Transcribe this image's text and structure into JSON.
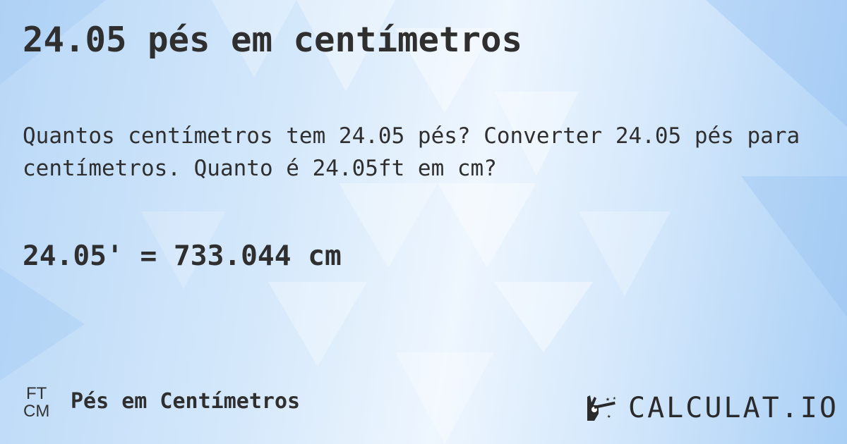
{
  "title": "24.05 pés em centímetros",
  "question": "Quantos centímetros tem 24.05 pés? Converter 24.05 pés para centímetros. Quanto é 24.05ft em cm?",
  "result": "24.05' = 733.044 cm",
  "footer": {
    "unit_icon": {
      "top": "FT",
      "bottom": "CM"
    },
    "category": "Pés em Centímetros",
    "logo_text": "CALCULAT.IO",
    "logo_icon": "hand-magic-wand-icon"
  },
  "colors": {
    "text": "#2f2f2f",
    "background": "#cfe4fa"
  }
}
